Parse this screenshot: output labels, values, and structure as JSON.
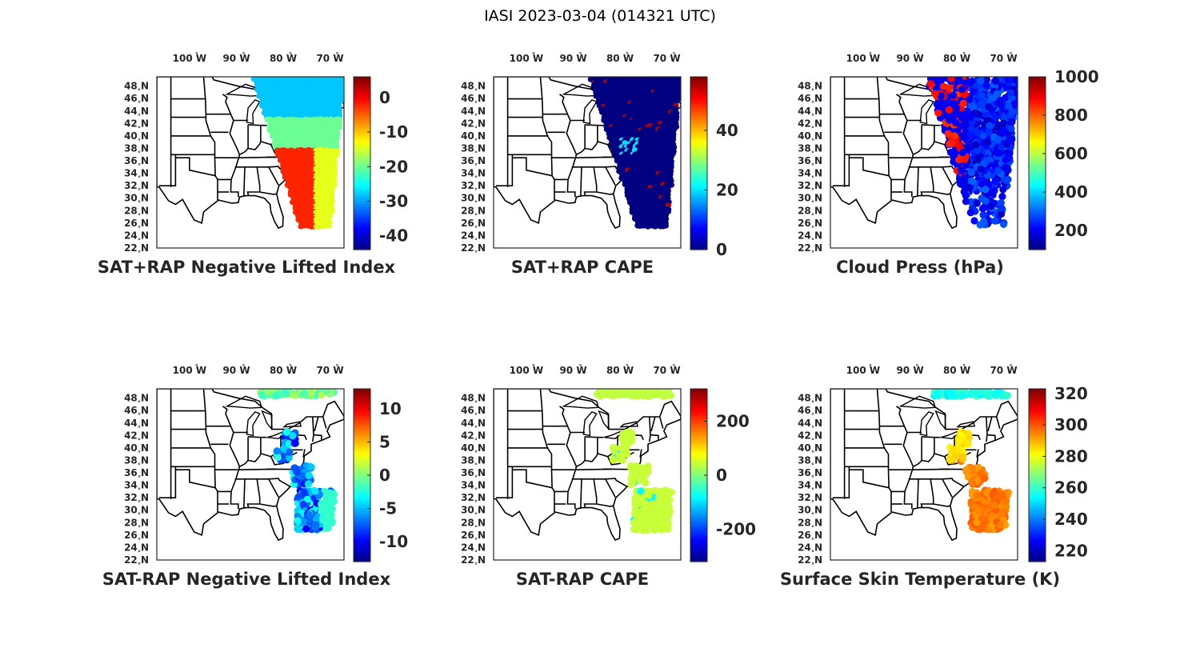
{
  "figure": {
    "title": "IASI 2023-03-04 (014321 UTC)"
  },
  "map": {
    "lon_ticks": [
      "100",
      "90",
      "80",
      "70"
    ],
    "lon_suffix": "W",
    "lat_ticks": [
      "48",
      "46",
      "44",
      "42",
      "40",
      "38",
      "36",
      "34",
      "32",
      "30",
      "28",
      "26",
      "24",
      "22"
    ],
    "lat_suffix": "N",
    "extent": {
      "lon": [
        -107,
        -67
      ],
      "lat": [
        22,
        49.5
      ]
    },
    "border_color": "#000000"
  },
  "panels": [
    {
      "title": "SAT+RAP Negative Lifted Index",
      "colormap": "jet",
      "clim": [
        -44,
        6
      ],
      "colorbar_ticks": [
        "0",
        "-10",
        "-20",
        "-30",
        "-40"
      ],
      "colorbar_values": [
        0,
        -10,
        -20,
        -30,
        -40
      ],
      "swath": "full",
      "sample_values": [
        -28,
        -20,
        -10,
        -2,
        3
      ]
    },
    {
      "title": "SAT+RAP CAPE",
      "colormap": "jet",
      "clim": [
        0,
        58
      ],
      "colorbar_ticks": [
        "40",
        "20",
        "0"
      ],
      "colorbar_values": [
        40,
        20,
        0
      ],
      "swath": "full",
      "sample_values": [
        0,
        0,
        0,
        20,
        55
      ]
    },
    {
      "title": "Cloud Press (hPa)",
      "colormap": "jet",
      "clim": [
        100,
        1000
      ],
      "colorbar_ticks": [
        "1000",
        "800",
        "600",
        "400",
        "200"
      ],
      "colorbar_values": [
        1000,
        800,
        600,
        400,
        200
      ],
      "swath": "cloud",
      "sample_values": [
        150,
        200,
        300,
        700,
        900
      ]
    },
    {
      "title": "SAT-RAP Negative Lifted Index",
      "colormap": "jet",
      "clim": [
        -13,
        13
      ],
      "colorbar_ticks": [
        "10",
        "5",
        "0",
        "-5",
        "-10"
      ],
      "colorbar_values": [
        10,
        5,
        0,
        -5,
        -10
      ],
      "swath": "sparse",
      "sample_values": [
        -10,
        -8,
        -5,
        -2,
        2
      ]
    },
    {
      "title": "SAT-RAP CAPE",
      "colormap": "jet",
      "clim": [
        -320,
        320
      ],
      "colorbar_ticks": [
        "200",
        "0",
        "-200"
      ],
      "colorbar_values": [
        200,
        0,
        -200
      ],
      "swath": "sparse",
      "sample_values": [
        40,
        50,
        60,
        -80,
        45
      ]
    },
    {
      "title": "Surface Skin Temperature (K)",
      "colormap": "jet",
      "clim": [
        213,
        323
      ],
      "colorbar_ticks": [
        "320",
        "300",
        "280",
        "260",
        "240",
        "220"
      ],
      "colorbar_values": [
        320,
        300,
        280,
        260,
        240,
        220
      ],
      "swath": "sparse",
      "sample_values": [
        300,
        295,
        290,
        262,
        305
      ]
    }
  ]
}
